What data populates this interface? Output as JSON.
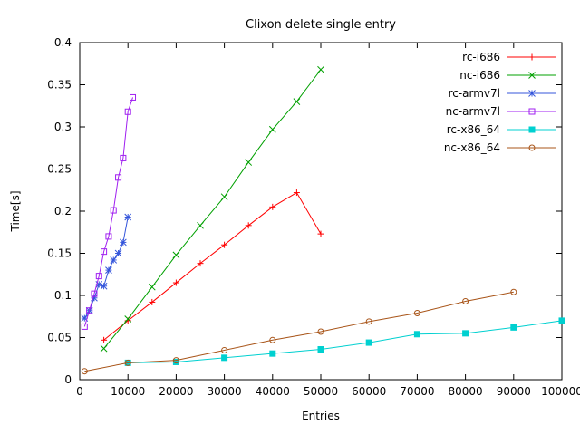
{
  "title": "Clixon delete single entry",
  "chart_data": {
    "type": "line",
    "title": "Clixon delete single entry",
    "xlabel": "Entries",
    "ylabel": "Time[s]",
    "xlim": [
      0,
      100000
    ],
    "ylim": [
      0,
      0.4
    ],
    "grid": false,
    "legend_position": "top-right-inside",
    "xticks": {
      "values": [
        0,
        10000,
        20000,
        30000,
        40000,
        50000,
        60000,
        70000,
        80000,
        90000,
        100000
      ],
      "labels": [
        "0",
        "10000",
        "20000",
        "30000",
        "40000",
        "50000",
        "60000",
        "70000",
        "80000",
        "90000",
        "100000"
      ]
    },
    "yticks": {
      "values": [
        0,
        0.05,
        0.1,
        0.15,
        0.2,
        0.25,
        0.3,
        0.35,
        0.4
      ],
      "labels": [
        "0",
        "0.05",
        "0.1",
        "0.15",
        "0.2",
        "0.25",
        "0.3",
        "0.35",
        "0.4"
      ]
    },
    "series": [
      {
        "name": "rc-i686",
        "color": "#ff0000",
        "marker": "plus",
        "x": [
          5000,
          10000,
          15000,
          20000,
          25000,
          30000,
          35000,
          40000,
          45000,
          50000
        ],
        "y": [
          0.047,
          0.07,
          0.092,
          0.115,
          0.138,
          0.16,
          0.183,
          0.205,
          0.222,
          0.173
        ]
      },
      {
        "name": "nc-i686",
        "color": "#00a000",
        "marker": "cross",
        "x": [
          5000,
          10000,
          15000,
          20000,
          25000,
          30000,
          35000,
          40000,
          45000,
          50000
        ],
        "y": [
          0.037,
          0.072,
          0.11,
          0.148,
          0.183,
          0.217,
          0.258,
          0.297,
          0.33,
          0.368
        ]
      },
      {
        "name": "rc-armv7l",
        "color": "#3455db",
        "marker": "asterisk",
        "x": [
          1000,
          2000,
          3000,
          4000,
          5000,
          6000,
          7000,
          8000,
          9000,
          10000
        ],
        "y": [
          0.073,
          0.082,
          0.097,
          0.113,
          0.111,
          0.13,
          0.142,
          0.15,
          0.163,
          0.193
        ]
      },
      {
        "name": "nc-armv7l",
        "color": "#a020f0",
        "marker": "square-open",
        "x": [
          1000,
          2000,
          3000,
          4000,
          5000,
          6000,
          7000,
          8000,
          9000,
          10000,
          11000
        ],
        "y": [
          0.063,
          0.082,
          0.102,
          0.123,
          0.152,
          0.17,
          0.201,
          0.24,
          0.263,
          0.318,
          0.335
        ]
      },
      {
        "name": "rc-x86_64",
        "color": "#00d0d0",
        "marker": "square-filled",
        "x": [
          10000,
          20000,
          30000,
          40000,
          50000,
          60000,
          70000,
          80000,
          90000,
          100000
        ],
        "y": [
          0.02,
          0.021,
          0.026,
          0.031,
          0.036,
          0.044,
          0.054,
          0.055,
          0.062,
          0.07
        ]
      },
      {
        "name": "nc-x86_64",
        "color": "#a85418",
        "marker": "circle-open",
        "x": [
          1000,
          10000,
          20000,
          30000,
          40000,
          50000,
          60000,
          70000,
          80000,
          90000
        ],
        "y": [
          0.01,
          0.02,
          0.023,
          0.035,
          0.047,
          0.057,
          0.069,
          0.079,
          0.093,
          0.104
        ]
      }
    ]
  }
}
